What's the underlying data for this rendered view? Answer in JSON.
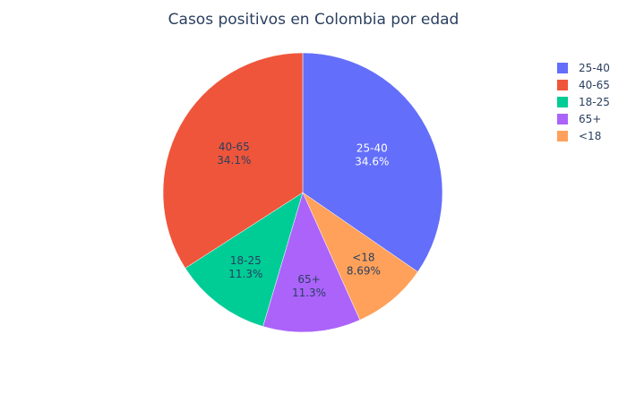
{
  "chart_data": {
    "type": "pie",
    "title": "Casos positivos en Colombia por edad",
    "legend_position": "top-right",
    "slices": [
      {
        "label": "25-40",
        "value": 34.6,
        "display_pct": "34.6%",
        "color": "#636efa",
        "text_color": "#ffffff"
      },
      {
        "label": "<18",
        "value": 8.69,
        "display_pct": "8.69%",
        "color": "#ffa15a",
        "text_color": "#2a3f5f"
      },
      {
        "label": "65+",
        "value": 11.3,
        "display_pct": "11.3%",
        "color": "#ab63fa",
        "text_color": "#2a3f5f"
      },
      {
        "label": "18-25",
        "value": 11.3,
        "display_pct": "11.3%",
        "color": "#00cc96",
        "text_color": "#2a3f5f"
      },
      {
        "label": "40-65",
        "value": 34.1,
        "display_pct": "34.1%",
        "color": "#ef553b",
        "text_color": "#2a3f5f"
      }
    ],
    "legend": [
      {
        "label": "25-40",
        "color": "#636efa"
      },
      {
        "label": "40-65",
        "color": "#ef553b"
      },
      {
        "label": "18-25",
        "color": "#00cc96"
      },
      {
        "label": "65+",
        "color": "#ab63fa"
      },
      {
        "label": "<18",
        "color": "#ffa15a"
      }
    ]
  }
}
